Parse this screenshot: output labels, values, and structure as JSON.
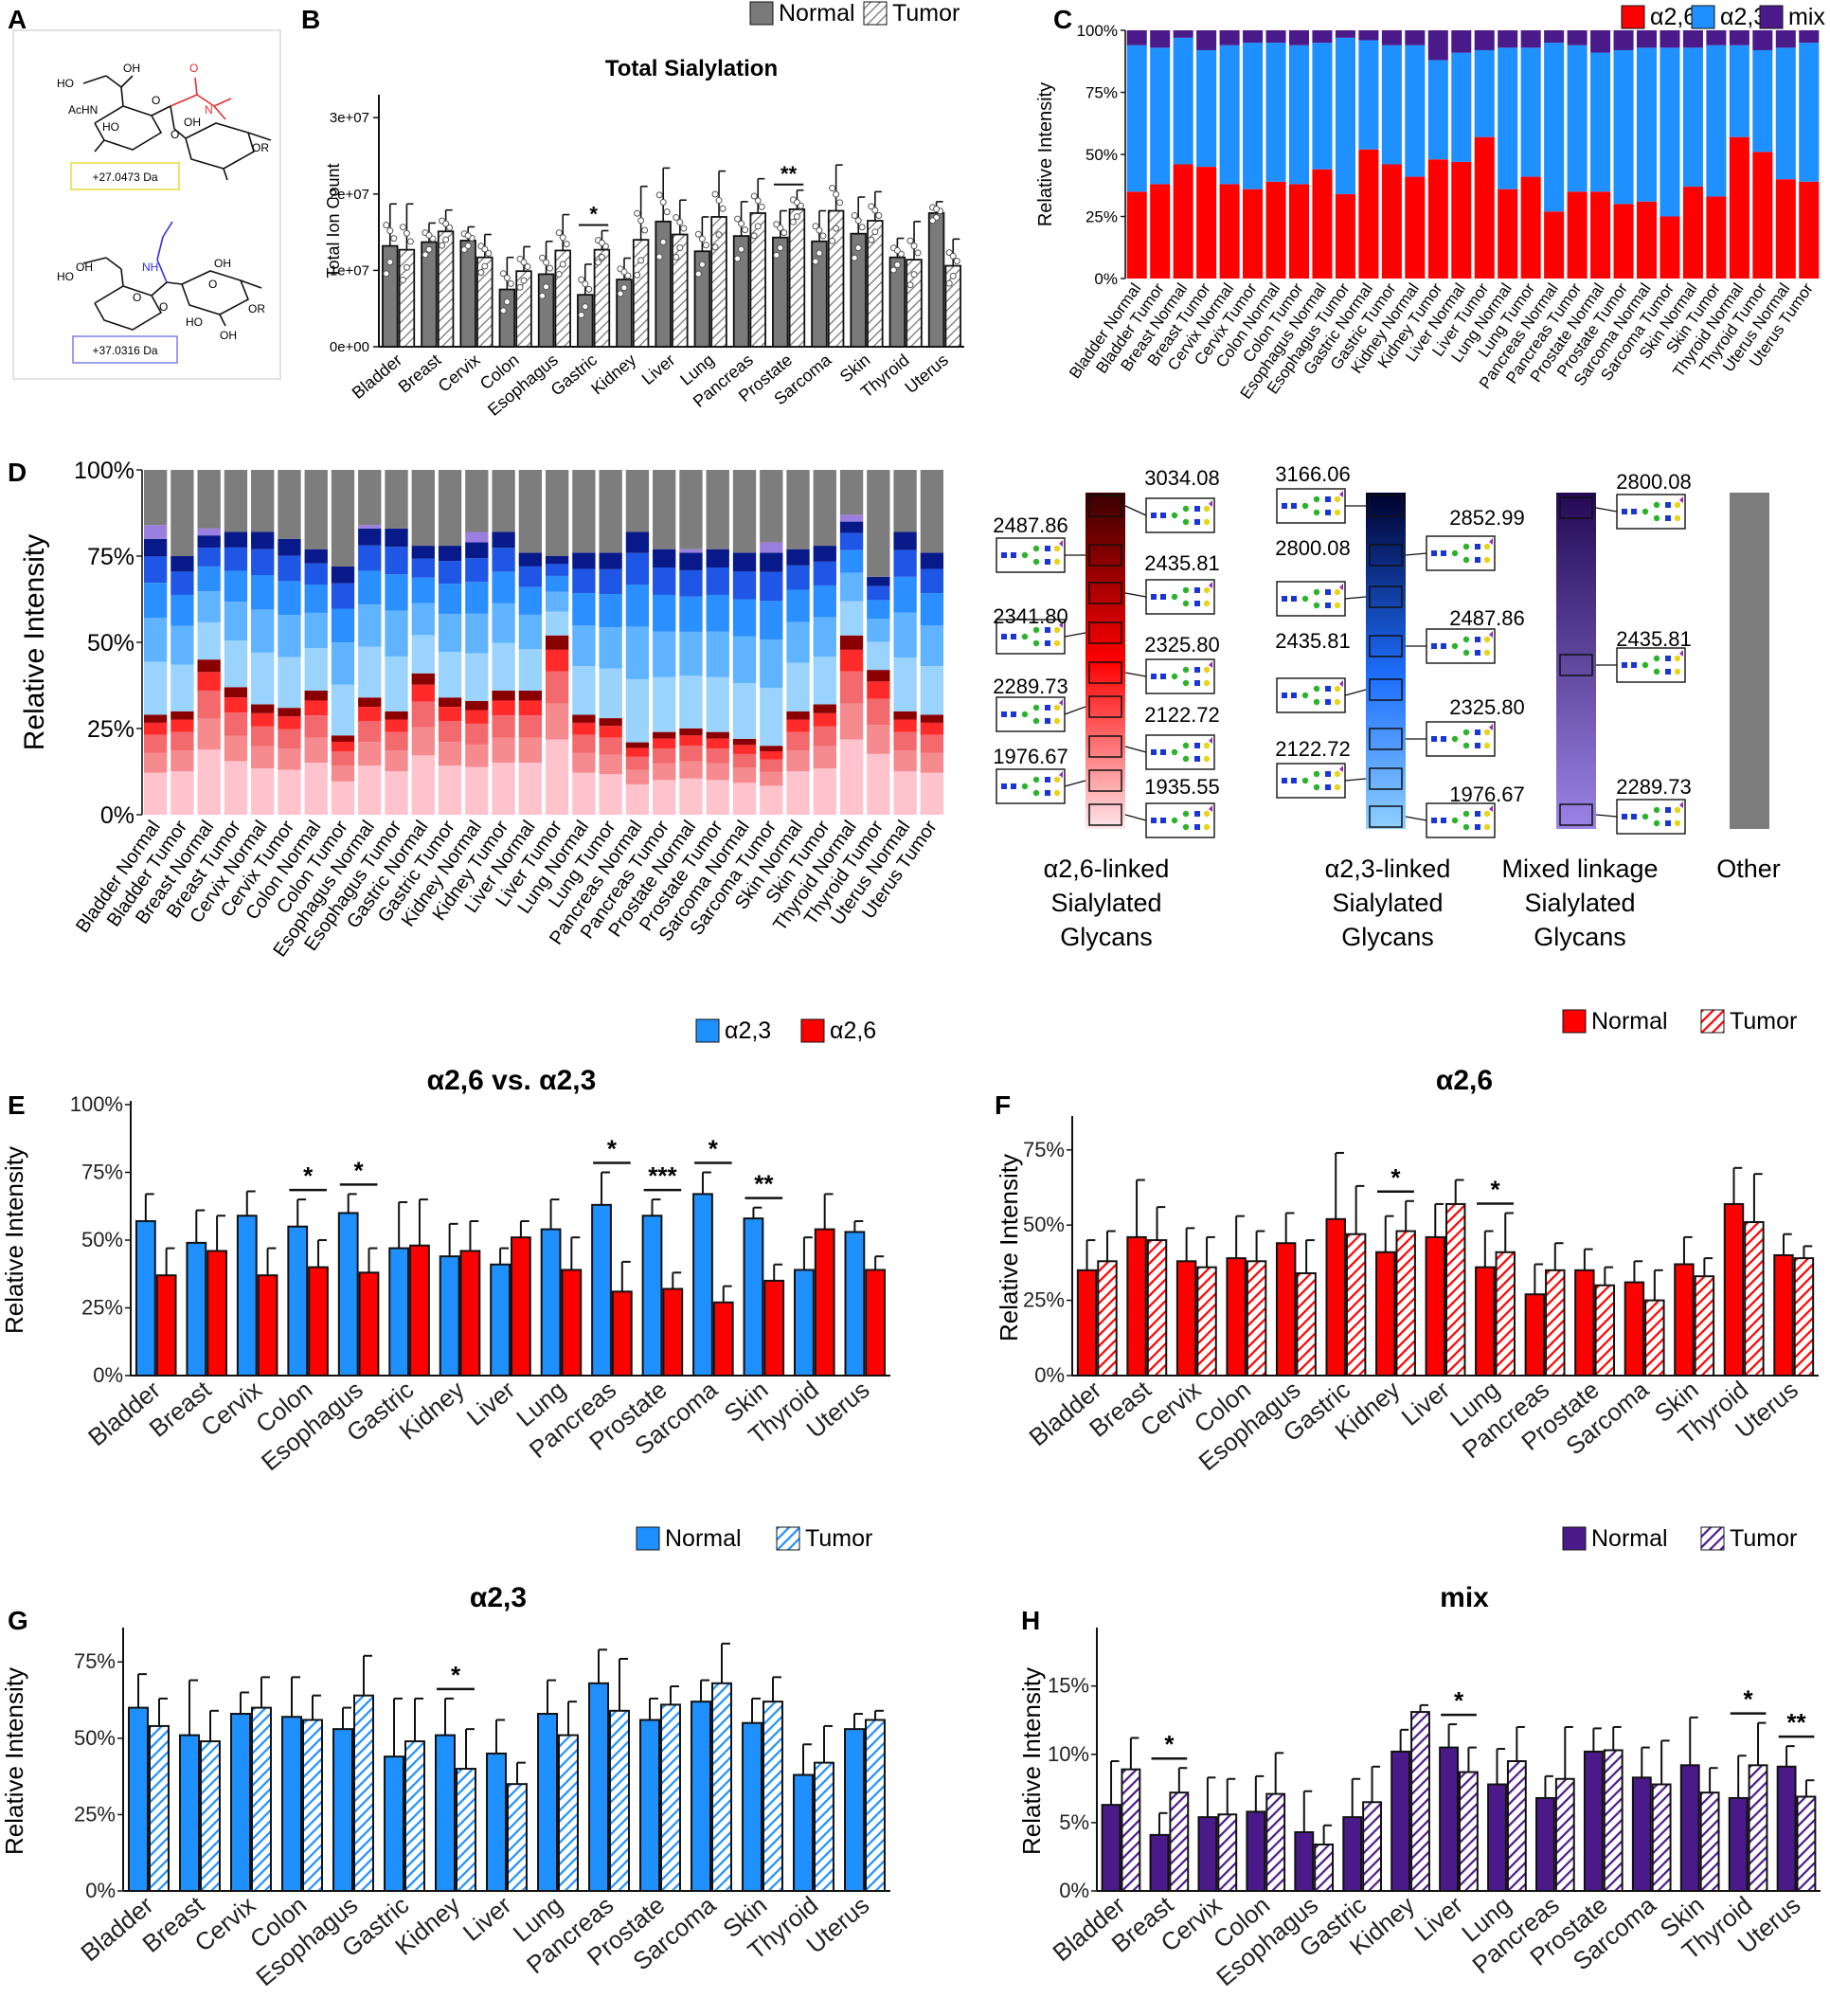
{
  "panel_letters": {
    "A": "A",
    "B": "B",
    "C": "C",
    "D": "D",
    "E": "E",
    "F": "F",
    "G": "G",
    "H": "H"
  },
  "colors": {
    "a26": "#ff0000",
    "a23": "#1e90ff",
    "mix": "#4b1a8a",
    "normal_gray": "#7a7a7a",
    "other": "#7d7d7d"
  },
  "panelA": {
    "mass1": "+27.0473 Da",
    "mass2": "+37.0316 Da",
    "atoms": [
      "HO",
      "OH",
      "AcHN",
      "HO",
      "O",
      "N",
      "O",
      "OH",
      "O",
      "OR",
      "HO",
      "OH",
      "O",
      "NH",
      "O",
      "OH",
      "O",
      "OR",
      "HO",
      "OH"
    ]
  },
  "chart_data": [
    {
      "id": "B",
      "type": "bar",
      "title": "Total Sialylation",
      "ylabel": "Total Ion Count",
      "ylim": [
        0,
        33000000
      ],
      "yticks": [
        0,
        10000000,
        20000000,
        30000000
      ],
      "ytick_labels": [
        "0e+00",
        "1e+07",
        "2e+07",
        "3e+07"
      ],
      "legend": [
        "Normal",
        "Tumor"
      ],
      "categories": [
        "Bladder",
        "Breast",
        "Cervix",
        "Colon",
        "Esophagus",
        "Gastric",
        "Kidney",
        "Liver",
        "Lung",
        "Pancreas",
        "Prostate",
        "Sarcoma",
        "Skin",
        "Thyroid",
        "Uterus"
      ],
      "series": [
        {
          "name": "Normal",
          "values": [
            13.2,
            13.7,
            13.9,
            7.5,
            9.5,
            6.8,
            8.8,
            16.4,
            12.5,
            14.5,
            14.3,
            13.8,
            14.8,
            11.7,
            17.5
          ],
          "errors": [
            5.5,
            2.5,
            1.8,
            4.2,
            4.3,
            4.0,
            2.8,
            7.0,
            4.5,
            4.5,
            3.5,
            4.0,
            4.8,
            2.5,
            1.5
          ]
        },
        {
          "name": "Tumor",
          "values": [
            12.7,
            15.1,
            11.7,
            9.9,
            12.6,
            12.7,
            14.0,
            14.7,
            17.0,
            17.5,
            18.0,
            17.8,
            16.5,
            11.4,
            10.6
          ],
          "errors": [
            6.0,
            2.8,
            3.0,
            3.2,
            4.7,
            2.5,
            7.0,
            4.5,
            6.0,
            4.5,
            2.5,
            6.0,
            3.8,
            5.0,
            3.5
          ]
        }
      ],
      "value_scale": 1000000,
      "significance": [
        {
          "category": "Gastric",
          "label": "*"
        },
        {
          "category": "Prostate",
          "label": "**"
        }
      ]
    },
    {
      "id": "C",
      "type": "stacked-bar",
      "ylabel": "Relative Intensity",
      "yticks": [
        "0%",
        "25%",
        "50%",
        "75%",
        "100%"
      ],
      "legend": [
        "α2,6",
        "α2,3",
        "mix"
      ],
      "categories": [
        "Bladder Normal",
        "Bladder Tumor",
        "Breast Normal",
        "Breast Tumor",
        "Cervix Normal",
        "Cervix Tumor",
        "Colon Normal",
        "Colon Tumor",
        "Esophagus Normal",
        "Esophagus Tumor",
        "Gastric Normal",
        "Gastric Tumor",
        "Kidney Normal",
        "Kidney Tumor",
        "Liver Normal",
        "Liver Tumor",
        "Lung Normal",
        "Lung Tumor",
        "Pancreas Normal",
        "Pancreas Tumor",
        "Prostate Normal",
        "Prostate Tumor",
        "Sarcoma Normal",
        "Sarcoma Tumor",
        "Skin Normal",
        "Skin Tumor",
        "Thyroid Normal",
        "Thyroid Tumor",
        "Uterus Normal",
        "Uterus Tumor"
      ],
      "series": [
        {
          "name": "α2,6",
          "values": [
            35,
            38,
            46,
            45,
            38,
            36,
            39,
            38,
            44,
            34,
            52,
            46,
            41,
            48,
            47,
            57,
            36,
            41,
            27,
            35,
            35,
            30,
            31,
            25,
            37,
            33,
            57,
            51,
            40,
            39
          ]
        },
        {
          "name": "α2,3",
          "values": [
            59,
            55,
            51,
            47,
            56,
            59,
            56,
            56,
            51,
            63,
            44,
            48,
            53,
            40,
            44,
            35,
            57,
            52,
            68,
            59,
            56,
            62,
            62,
            68,
            56,
            61,
            37,
            41,
            53,
            56
          ]
        },
        {
          "name": "mix",
          "values": [
            6,
            7,
            3,
            8,
            6,
            5,
            5,
            6,
            5,
            3,
            4,
            6,
            6,
            12,
            9,
            8,
            7,
            7,
            5,
            6,
            9,
            8,
            7,
            7,
            7,
            6,
            6,
            8,
            7,
            5
          ]
        }
      ]
    },
    {
      "id": "D",
      "type": "stacked-bar",
      "ylabel": "Relative Intensity",
      "yticks": [
        "0%",
        "25%",
        "50%",
        "75%",
        "100%"
      ],
      "categories": [
        "Bladder Normal",
        "Bladder Tumor",
        "Breast Normal",
        "Breast Tumor",
        "Cervix Normal",
        "Cervix Tumor",
        "Colon Normal",
        "Colon Tumor",
        "Esophagus Normal",
        "Esophagus Tumor",
        "Gastric Normal",
        "Gastric Tumor",
        "Kidney Normal",
        "Kidney Tumor",
        "Liver Normal",
        "Liver Tumor",
        "Lung Normal",
        "Lung Tumor",
        "Pancreas Normal",
        "Pancreas Tumor",
        "Prostate Normal",
        "Prostate Tumor",
        "Sarcoma Normal",
        "Sarcoma Tumor",
        "Skin Normal",
        "Skin Tumor",
        "Thyroid Normal",
        "Thyroid Tumor",
        "Uterus Normal",
        "Uterus Tumor"
      ],
      "a26_totals": [
        29,
        30,
        45,
        37,
        32,
        31,
        36,
        23,
        34,
        30,
        41,
        34,
        33,
        36,
        36,
        52,
        29,
        28,
        21,
        24,
        25,
        24,
        22,
        20,
        30,
        32,
        52,
        42,
        30,
        29
      ],
      "a23_totals": [
        51,
        45,
        36,
        45,
        50,
        49,
        41,
        49,
        49,
        53,
        37,
        44,
        46,
        46,
        40,
        23,
        47,
        48,
        61,
        53,
        51,
        53,
        54,
        56,
        47,
        46,
        33,
        27,
        52,
        47
      ],
      "mix_totals": [
        4,
        0,
        2,
        0,
        0,
        0,
        0,
        0,
        1,
        0,
        0,
        0,
        3,
        0,
        0,
        0,
        0,
        0,
        0,
        0,
        1,
        0,
        0,
        3,
        0,
        0,
        2,
        0,
        0,
        0
      ],
      "legend_groups": [
        "α2,6-linked Sialylated Glycans",
        "α2,3-linked Sialylated Glycans",
        "Mixed linkage Sialylated Glycans",
        "Other"
      ],
      "a26_masses": [
        "3034.08",
        "2487.86",
        "2435.81",
        "2341.80",
        "2325.80",
        "2289.73",
        "2122.72",
        "1976.67",
        "1935.55"
      ],
      "a23_masses": [
        "3166.06",
        "2852.99",
        "2800.08",
        "2487.86",
        "2435.81",
        "2325.80",
        "2122.72",
        "1976.67"
      ],
      "mix_masses": [
        "2800.08",
        "2435.81",
        "2289.73"
      ],
      "legend_labels": {
        "a26": [
          "α2,6-linked",
          "Sialylated",
          "Glycans"
        ],
        "a23": [
          "α2,3-linked",
          "Sialylated",
          "Glycans"
        ],
        "mix": [
          "Mixed linkage",
          "Sialylated",
          "Glycans"
        ],
        "other": "Other"
      }
    },
    {
      "id": "E",
      "type": "bar",
      "title": "α2,6 vs. α2,3",
      "ylabel": "Relative Intensity",
      "ylim": [
        0,
        100
      ],
      "yticks": [
        "0%",
        "25%",
        "50%",
        "75%",
        "100%"
      ],
      "legend": [
        "α2,3",
        "α2,6"
      ],
      "categories": [
        "Bladder",
        "Breast",
        "Cervix",
        "Colon",
        "Esophagus",
        "Gastric",
        "Kidney",
        "Liver",
        "Lung",
        "Pancreas",
        "Prostate",
        "Sarcoma",
        "Skin",
        "Thyroid",
        "Uterus"
      ],
      "series": [
        {
          "name": "α2,3",
          "values": [
            57,
            49,
            59,
            55,
            60,
            47,
            44,
            41,
            54,
            63,
            59,
            67,
            58,
            39,
            53
          ],
          "errors": [
            10,
            12,
            9,
            10,
            7,
            17,
            12,
            6,
            11,
            12,
            6,
            8,
            4,
            12,
            4
          ]
        },
        {
          "name": "α2,6",
          "values": [
            37,
            46,
            37,
            40,
            38,
            48,
            46,
            51,
            39,
            31,
            32,
            27,
            35,
            54,
            39
          ],
          "errors": [
            10,
            13,
            10,
            10,
            9,
            17,
            11,
            6,
            12,
            11,
            6,
            6,
            6,
            13,
            5
          ]
        }
      ],
      "significance": [
        {
          "category": "Colon",
          "label": "*"
        },
        {
          "category": "Esophagus",
          "label": "*"
        },
        {
          "category": "Pancreas",
          "label": "*"
        },
        {
          "category": "Prostate",
          "label": "***"
        },
        {
          "category": "Sarcoma",
          "label": "*"
        },
        {
          "category": "Skin",
          "label": "**"
        }
      ]
    },
    {
      "id": "F",
      "type": "bar",
      "title": "α2,6",
      "ylabel": "Relative Intensity",
      "ylim": [
        0,
        85
      ],
      "yticks": [
        "0%",
        "25%",
        "50%",
        "75%"
      ],
      "legend": [
        "Normal",
        "Tumor"
      ],
      "categories": [
        "Bladder",
        "Breast",
        "Cervix",
        "Colon",
        "Esophagus",
        "Gastric",
        "Kidney",
        "Liver",
        "Lung",
        "Pancreas",
        "Prostate",
        "Sarcoma",
        "Skin",
        "Thyroid",
        "Uterus"
      ],
      "series": [
        {
          "name": "Normal",
          "values": [
            35,
            46,
            38,
            39,
            44,
            52,
            41,
            46,
            36,
            27,
            35,
            31,
            37,
            57,
            40
          ],
          "errors": [
            10,
            19,
            11,
            14,
            10,
            22,
            12,
            11,
            12,
            10,
            7,
            7,
            9,
            12,
            7
          ]
        },
        {
          "name": "Tumor",
          "values": [
            38,
            45,
            36,
            38,
            34,
            47,
            48,
            57,
            41,
            35,
            30,
            25,
            33,
            51,
            39
          ],
          "errors": [
            10,
            11,
            10,
            10,
            11,
            16,
            10,
            8,
            13,
            9,
            6,
            10,
            6,
            16,
            4
          ]
        }
      ],
      "significance": [
        {
          "category": "Kidney",
          "label": "*"
        },
        {
          "category": "Lung",
          "label": "*"
        }
      ]
    },
    {
      "id": "G",
      "type": "bar",
      "title": "α2,3",
      "ylabel": "Relative Intensity",
      "ylim": [
        0,
        85
      ],
      "yticks": [
        "0%",
        "25%",
        "50%",
        "75%"
      ],
      "legend": [
        "Normal",
        "Tumor"
      ],
      "categories": [
        "Bladder",
        "Breast",
        "Cervix",
        "Colon",
        "Esophagus",
        "Gastric",
        "Kidney",
        "Liver",
        "Lung",
        "Pancreas",
        "Prostate",
        "Sarcoma",
        "Skin",
        "Thyroid",
        "Uterus"
      ],
      "series": [
        {
          "name": "Normal",
          "values": [
            60,
            51,
            58,
            57,
            53,
            44,
            51,
            45,
            58,
            68,
            56,
            62,
            55,
            38,
            53
          ],
          "errors": [
            11,
            18,
            7,
            13,
            7,
            19,
            12,
            11,
            11,
            11,
            7,
            7,
            8,
            10,
            5
          ]
        },
        {
          "name": "Tumor",
          "values": [
            54,
            49,
            60,
            56,
            64,
            49,
            40,
            35,
            51,
            59,
            61,
            68,
            62,
            42,
            56
          ],
          "errors": [
            9,
            10,
            10,
            8,
            13,
            14,
            13,
            7,
            11,
            17,
            6,
            13,
            8,
            12,
            3
          ]
        }
      ],
      "significance": [
        {
          "category": "Kidney",
          "label": "*"
        }
      ]
    },
    {
      "id": "H",
      "type": "bar",
      "title": "mix",
      "ylabel": "Relative Intensity",
      "ylim": [
        0,
        19
      ],
      "yticks": [
        "0%",
        "5%",
        "10%",
        "15%"
      ],
      "legend": [
        "Normal",
        "Tumor"
      ],
      "categories": [
        "Bladder",
        "Breast",
        "Cervix",
        "Colon",
        "Esophagus",
        "Gastric",
        "Kidney",
        "Liver",
        "Lung",
        "Pancreas",
        "Prostate",
        "Sarcoma",
        "Skin",
        "Thyroid",
        "Uterus"
      ],
      "series": [
        {
          "name": "Normal",
          "values": [
            6.3,
            4.1,
            5.4,
            5.8,
            4.3,
            5.4,
            10.2,
            10.5,
            7.8,
            6.8,
            10.2,
            8.3,
            9.2,
            6.8,
            9.1
          ],
          "errors": [
            3.2,
            1.6,
            2.9,
            2.6,
            3.0,
            2.8,
            1.6,
            1.7,
            2.6,
            1.6,
            1.7,
            2.2,
            3.5,
            3.1,
            1.5
          ]
        },
        {
          "name": "Tumor",
          "values": [
            8.9,
            7.2,
            5.6,
            7.1,
            3.4,
            6.5,
            13.1,
            8.7,
            9.5,
            8.2,
            10.3,
            7.8,
            7.2,
            9.2,
            6.9
          ],
          "errors": [
            2.3,
            1.8,
            2.6,
            3.0,
            1.4,
            2.6,
            0.5,
            1.8,
            2.5,
            3.8,
            1.7,
            3.2,
            1.8,
            3.1,
            1.2
          ]
        }
      ],
      "significance": [
        {
          "category": "Breast",
          "label": "*"
        },
        {
          "category": "Liver",
          "label": "*"
        },
        {
          "category": "Thyroid",
          "label": "*"
        },
        {
          "category": "Uterus",
          "label": "**"
        }
      ]
    }
  ]
}
